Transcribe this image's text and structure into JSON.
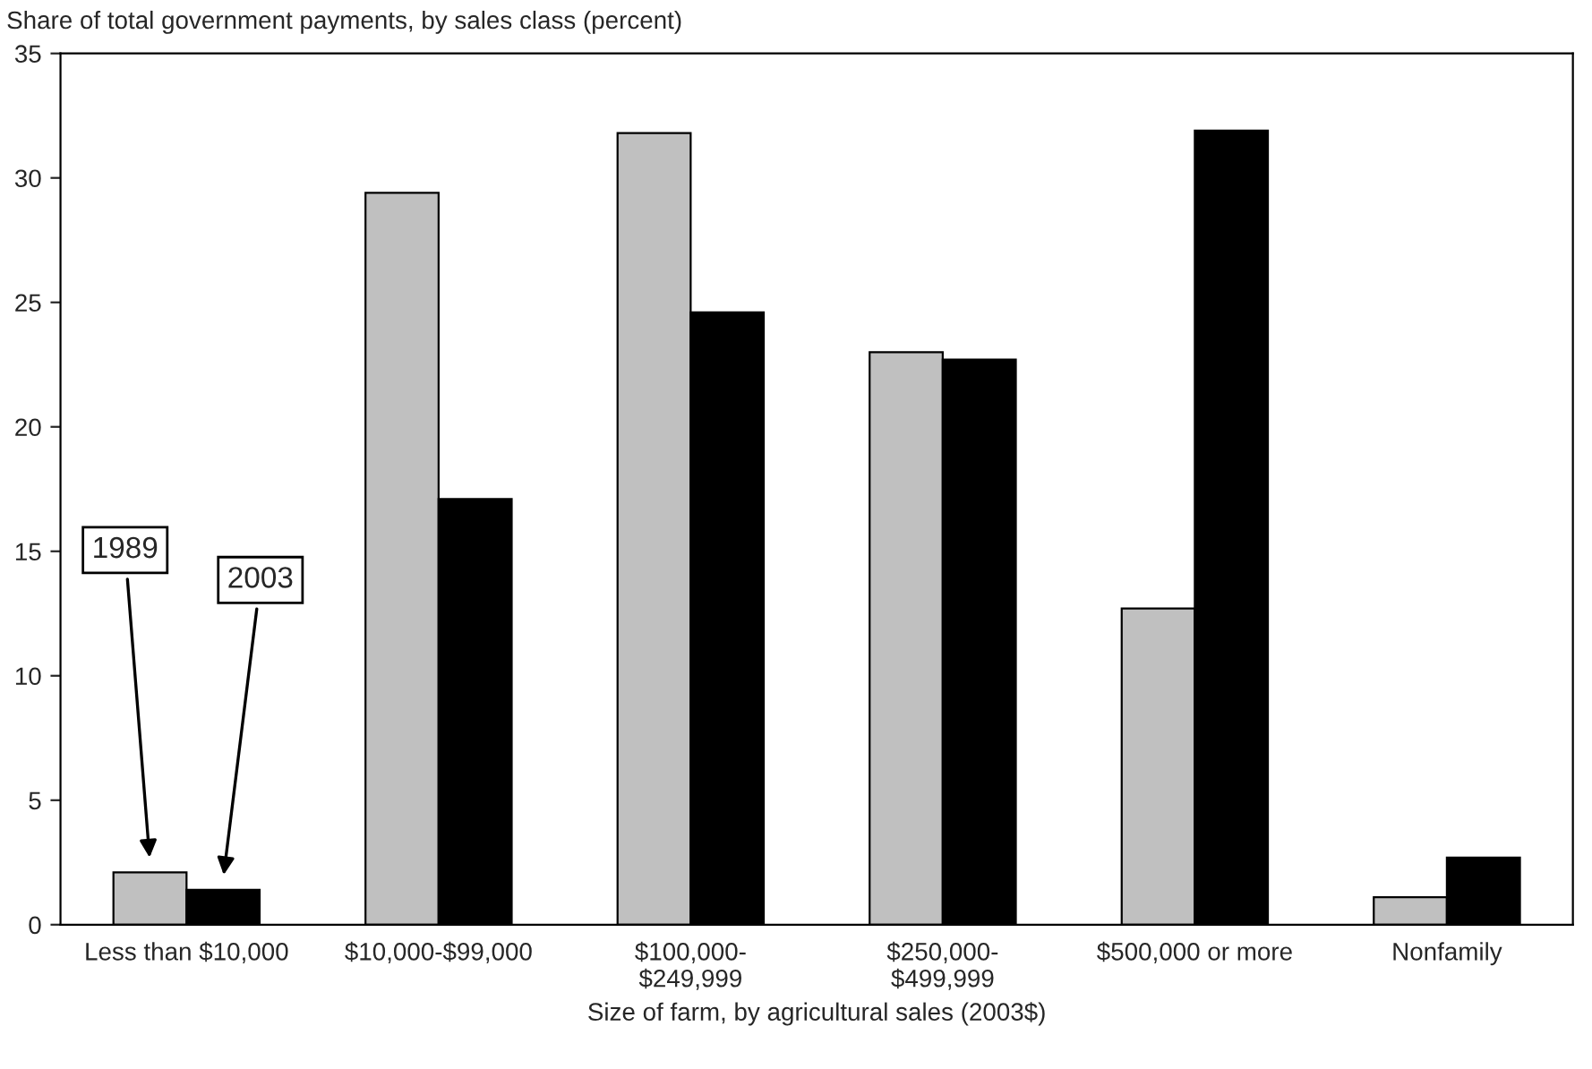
{
  "chart_data": {
    "type": "bar",
    "ylabel": "Share of total government payments, by sales class (percent)",
    "xlabel": "Size of farm, by agricultural sales (2003$)",
    "categories": [
      "Less than $10,000",
      "$10,000-$99,000",
      "$100,000-\n$249,999",
      "$250,000-\n$499,999",
      "$500,000 or more",
      "Nonfamily"
    ],
    "series": [
      {
        "name": "1989",
        "color": "#c0c0c0",
        "values": [
          2.1,
          29.4,
          31.8,
          23.0,
          12.7,
          1.1
        ]
      },
      {
        "name": "2003",
        "color": "#000000",
        "values": [
          1.4,
          17.1,
          24.6,
          22.7,
          31.9,
          2.7
        ]
      }
    ],
    "ylim": [
      0,
      35
    ],
    "yticks": [
      0,
      5,
      10,
      15,
      20,
      25,
      30,
      35
    ],
    "grid": false,
    "legend": false
  }
}
